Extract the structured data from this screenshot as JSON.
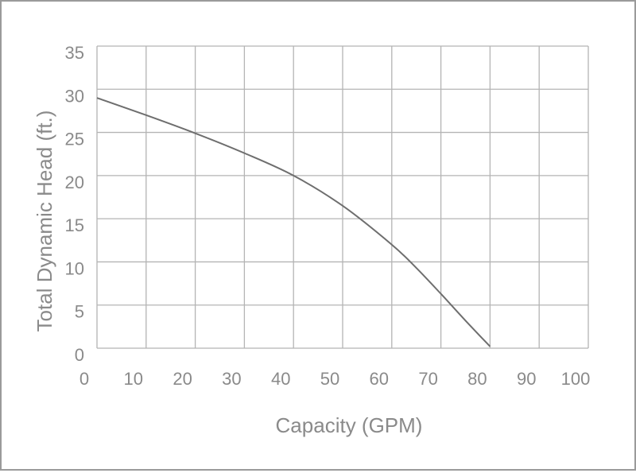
{
  "chart_data": {
    "type": "line",
    "title": "",
    "xlabel": "Capacity (GPM)",
    "ylabel": "Total Dynamic Head (ft.)",
    "xlim": [
      0,
      100
    ],
    "ylim": [
      0,
      35
    ],
    "x_ticks": [
      "0",
      "10",
      "20",
      "30",
      "40",
      "50",
      "60",
      "70",
      "80",
      "90",
      "100"
    ],
    "y_ticks": [
      "0",
      "5",
      "10",
      "15",
      "20",
      "25",
      "30",
      "35"
    ],
    "grid": true,
    "colors": {
      "line": "#6e6e6e",
      "grid": "#b4b4b4",
      "border": "#9a9a9a",
      "text": "#8a8a8a"
    },
    "series": [
      {
        "x": [
          0,
          10,
          20,
          30,
          40,
          50,
          60,
          65,
          70,
          75,
          80
        ],
        "y": [
          29,
          27,
          24.9,
          22.6,
          20,
          16.5,
          12,
          9.3,
          6.3,
          3.2,
          0.2
        ]
      }
    ]
  }
}
